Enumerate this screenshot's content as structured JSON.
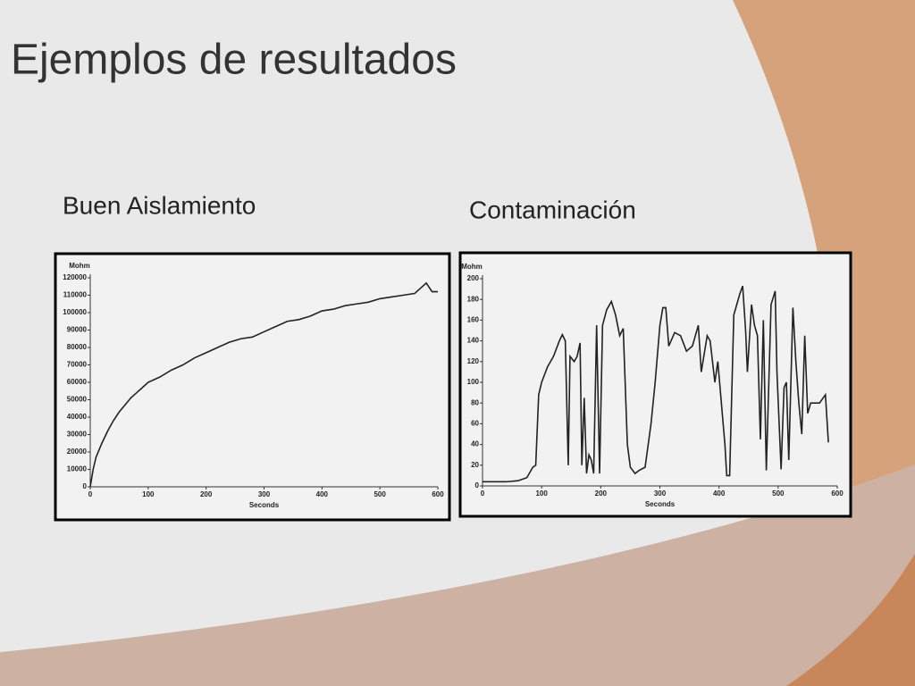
{
  "title": "Ejemplos de resultados",
  "chart_data": [
    {
      "type": "line",
      "title": "Buen Aislamiento",
      "y_label": "Mohm",
      "x_label": "Seconds",
      "color": "#222222",
      "x": [
        0,
        5,
        10,
        20,
        30,
        40,
        50,
        60,
        70,
        80,
        90,
        100,
        120,
        140,
        160,
        180,
        200,
        220,
        240,
        260,
        280,
        300,
        320,
        340,
        360,
        380,
        400,
        420,
        440,
        460,
        480,
        500,
        520,
        540,
        560,
        570,
        580,
        590,
        600
      ],
      "values": [
        0,
        10000,
        17000,
        25000,
        32000,
        38000,
        43000,
        47000,
        51000,
        54000,
        57000,
        60000,
        63000,
        67000,
        70000,
        74000,
        77000,
        80000,
        83000,
        85000,
        86000,
        89000,
        92000,
        95000,
        96000,
        98000,
        101000,
        102000,
        104000,
        105000,
        106000,
        108000,
        109000,
        110000,
        111000,
        114000,
        117000,
        112000,
        112000
      ],
      "xlim": [
        0,
        600
      ],
      "xticks": [
        0,
        100,
        200,
        300,
        400,
        500,
        600
      ],
      "ylim": [
        0,
        120000
      ],
      "yticks": [
        0,
        10000,
        20000,
        30000,
        40000,
        50000,
        60000,
        70000,
        80000,
        90000,
        100000,
        110000,
        120000
      ]
    },
    {
      "type": "line",
      "title": "Contaminación",
      "y_label": "Mohm",
      "x_label": "Seconds",
      "color": "#222222",
      "x": [
        0,
        20,
        40,
        60,
        75,
        85,
        90,
        95,
        100,
        110,
        120,
        130,
        135,
        140,
        145,
        148,
        155,
        160,
        165,
        168,
        172,
        176,
        180,
        184,
        188,
        193,
        198,
        203,
        210,
        218,
        225,
        232,
        238,
        245,
        250,
        258,
        265,
        275,
        285,
        292,
        300,
        305,
        310,
        315,
        325,
        335,
        345,
        355,
        365,
        370,
        380,
        385,
        393,
        398,
        410,
        413,
        418,
        425,
        435,
        440,
        445,
        448,
        455,
        460,
        465,
        470,
        475,
        480,
        488,
        495,
        498,
        505,
        510,
        514,
        518,
        525,
        530,
        535,
        540,
        545,
        550,
        555,
        570,
        580,
        585
      ],
      "values": [
        4,
        4,
        4,
        5,
        8,
        18,
        20,
        88,
        100,
        115,
        125,
        140,
        146,
        140,
        20,
        125,
        120,
        125,
        138,
        20,
        85,
        12,
        30,
        25,
        12,
        155,
        12,
        155,
        170,
        178,
        165,
        145,
        152,
        40,
        18,
        12,
        15,
        18,
        60,
        100,
        155,
        172,
        172,
        135,
        148,
        145,
        130,
        135,
        155,
        110,
        145,
        140,
        100,
        120,
        40,
        10,
        10,
        165,
        185,
        193,
        150,
        110,
        175,
        155,
        145,
        45,
        160,
        15,
        175,
        188,
        110,
        16,
        95,
        100,
        25,
        172,
        120,
        80,
        50,
        145,
        70,
        80,
        80,
        88,
        42
      ],
      "xlim": [
        0,
        600
      ],
      "xticks": [
        0,
        100,
        200,
        300,
        400,
        500,
        600
      ],
      "ylim": [
        0,
        200
      ],
      "yticks": [
        0,
        20,
        40,
        60,
        80,
        100,
        120,
        140,
        160,
        180,
        200
      ]
    }
  ]
}
